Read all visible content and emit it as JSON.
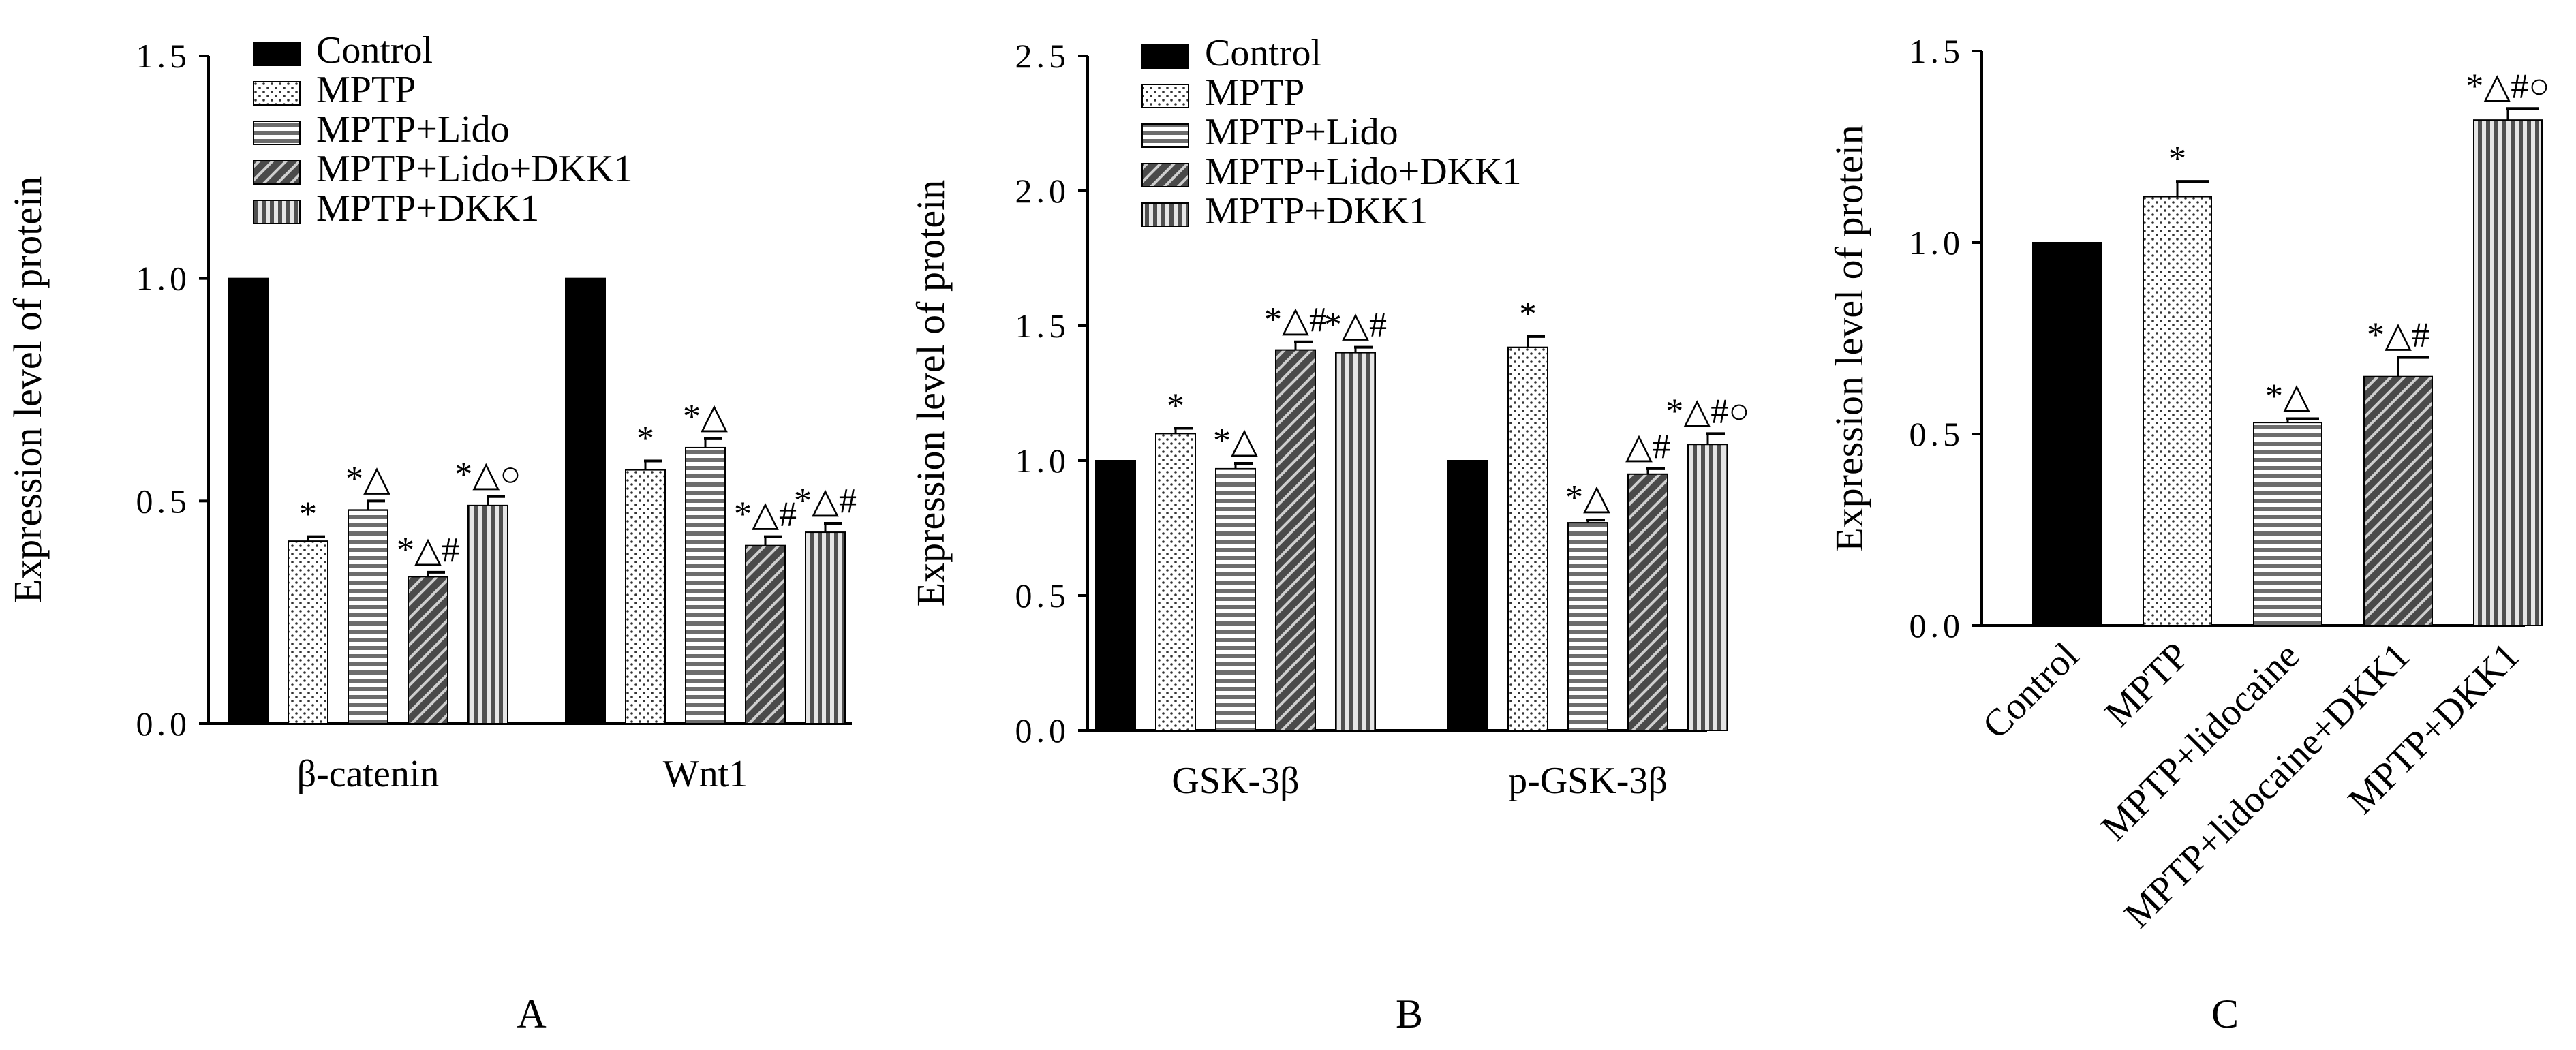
{
  "colors": {
    "Control": "#000000",
    "MPTP": "dots",
    "MPTP+Lido": "horizontal-stripes",
    "MPTP+Lido+DKK1": "diagonal-hatch",
    "MPTP+DKK1": "vertical-stripes"
  },
  "chart_data": [
    {
      "panel": "A",
      "type": "bar",
      "ylabel": "Expression level of protein",
      "ylim": [
        0,
        1.5
      ],
      "yticks": [
        "0.0",
        "0.5",
        "1.0",
        "1.5"
      ],
      "legend_position": "top-left",
      "categories": [
        "β-catenin",
        "Wnt1"
      ],
      "series": [
        {
          "name": "Control",
          "pattern": "Control",
          "values": [
            1.0,
            1.0
          ],
          "errors": [
            0,
            0
          ],
          "sig": [
            "",
            ""
          ]
        },
        {
          "name": "MPTP",
          "pattern": "MPTP",
          "values": [
            0.41,
            0.57
          ],
          "errors": [
            0.01,
            0.02
          ],
          "sig": [
            "*",
            "*"
          ]
        },
        {
          "name": "MPTP+Lido",
          "pattern": "MPTP+Lido",
          "values": [
            0.48,
            0.62
          ],
          "errors": [
            0.02,
            0.02
          ],
          "sig": [
            "*△",
            "*△"
          ]
        },
        {
          "name": "MPTP+Lido+DKK1",
          "pattern": "MPTP+Lido+DKK1",
          "values": [
            0.33,
            0.4
          ],
          "errors": [
            0.01,
            0.02
          ],
          "sig": [
            "*△#",
            "*△#"
          ]
        },
        {
          "name": "MPTP+DKK1",
          "pattern": "MPTP+DKK1",
          "values": [
            0.49,
            0.43
          ],
          "errors": [
            0.02,
            0.02
          ],
          "sig": [
            "*△○",
            "*△#"
          ]
        }
      ]
    },
    {
      "panel": "B",
      "type": "bar",
      "ylabel": "Expression level of protein",
      "ylim": [
        0,
        2.5
      ],
      "yticks": [
        "0.0",
        "0.5",
        "1.0",
        "1.5",
        "2.0",
        "2.5"
      ],
      "legend_position": "top-left",
      "categories": [
        "GSK-3β",
        "p-GSK-3β"
      ],
      "series": [
        {
          "name": "Control",
          "pattern": "Control",
          "values": [
            1.0,
            1.0
          ],
          "errors": [
            0,
            0
          ],
          "sig": [
            "",
            ""
          ]
        },
        {
          "name": "MPTP",
          "pattern": "MPTP",
          "values": [
            1.1,
            1.42
          ],
          "errors": [
            0.02,
            0.04
          ],
          "sig": [
            "*",
            "*"
          ]
        },
        {
          "name": "MPTP+Lido",
          "pattern": "MPTP+Lido",
          "values": [
            0.97,
            0.77
          ],
          "errors": [
            0.02,
            0.01
          ],
          "sig": [
            "*△",
            "*△"
          ]
        },
        {
          "name": "MPTP+Lido+DKK1",
          "pattern": "MPTP+Lido+DKK1",
          "values": [
            1.41,
            0.95
          ],
          "errors": [
            0.03,
            0.02
          ],
          "sig": [
            "*△#",
            "△#"
          ]
        },
        {
          "name": "MPTP+DKK1",
          "pattern": "MPTP+DKK1",
          "values": [
            1.4,
            1.06
          ],
          "errors": [
            0.02,
            0.04
          ],
          "sig": [
            "*△#",
            "*△#○"
          ]
        }
      ]
    },
    {
      "panel": "C",
      "type": "bar",
      "ylabel": "Expression level of protein",
      "ylim": [
        0,
        1.5
      ],
      "yticks": [
        "0.0",
        "0.5",
        "1.0",
        "1.5"
      ],
      "categories": [
        "Control",
        "MPTP",
        "MPTP+lidocaine",
        "MPTP+lidocaine+DKK1",
        "MPTP+DKK1"
      ],
      "patterns": [
        "Control",
        "MPTP",
        "MPTP+Lido",
        "MPTP+Lido+DKK1",
        "MPTP+DKK1"
      ],
      "values": [
        1.0,
        1.12,
        0.53,
        0.65,
        1.32
      ],
      "errors": [
        0,
        0.04,
        0.01,
        0.05,
        0.03
      ],
      "sig": [
        "",
        "*",
        "*△",
        "*△#",
        "*△#○"
      ]
    }
  ]
}
